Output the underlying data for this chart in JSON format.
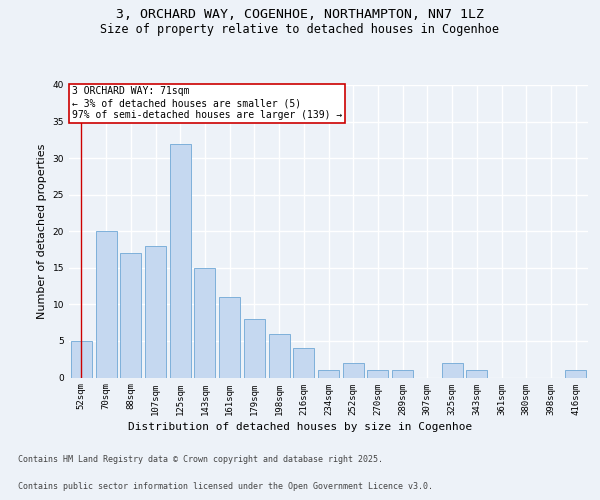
{
  "title_line1": "3, ORCHARD WAY, COGENHOE, NORTHAMPTON, NN7 1LZ",
  "title_line2": "Size of property relative to detached houses in Cogenhoe",
  "xlabel": "Distribution of detached houses by size in Cogenhoe",
  "ylabel": "Number of detached properties",
  "categories": [
    "52sqm",
    "70sqm",
    "88sqm",
    "107sqm",
    "125sqm",
    "143sqm",
    "161sqm",
    "179sqm",
    "198sqm",
    "216sqm",
    "234sqm",
    "252sqm",
    "270sqm",
    "289sqm",
    "307sqm",
    "325sqm",
    "343sqm",
    "361sqm",
    "380sqm",
    "398sqm",
    "416sqm"
  ],
  "values": [
    5,
    20,
    17,
    18,
    32,
    15,
    11,
    8,
    6,
    4,
    1,
    2,
    1,
    1,
    0,
    2,
    1,
    0,
    0,
    0,
    1
  ],
  "bar_color": "#c5d8f0",
  "bar_edge_color": "#6fa8d6",
  "annotation_box_text": "3 ORCHARD WAY: 71sqm\n← 3% of detached houses are smaller (5)\n97% of semi-detached houses are larger (139) →",
  "annotation_box_color": "#ffffff",
  "annotation_box_edge_color": "#cc0000",
  "vline_color": "#cc0000",
  "ylim": [
    0,
    40
  ],
  "yticks": [
    0,
    5,
    10,
    15,
    20,
    25,
    30,
    35,
    40
  ],
  "bg_color": "#edf2f8",
  "plot_bg_color": "#edf2f8",
  "grid_color": "#ffffff",
  "footer_line1": "Contains HM Land Registry data © Crown copyright and database right 2025.",
  "footer_line2": "Contains public sector information licensed under the Open Government Licence v3.0.",
  "title_fontsize": 9.5,
  "subtitle_fontsize": 8.5,
  "axis_label_fontsize": 8,
  "tick_fontsize": 6.5,
  "annotation_fontsize": 7,
  "footer_fontsize": 6
}
